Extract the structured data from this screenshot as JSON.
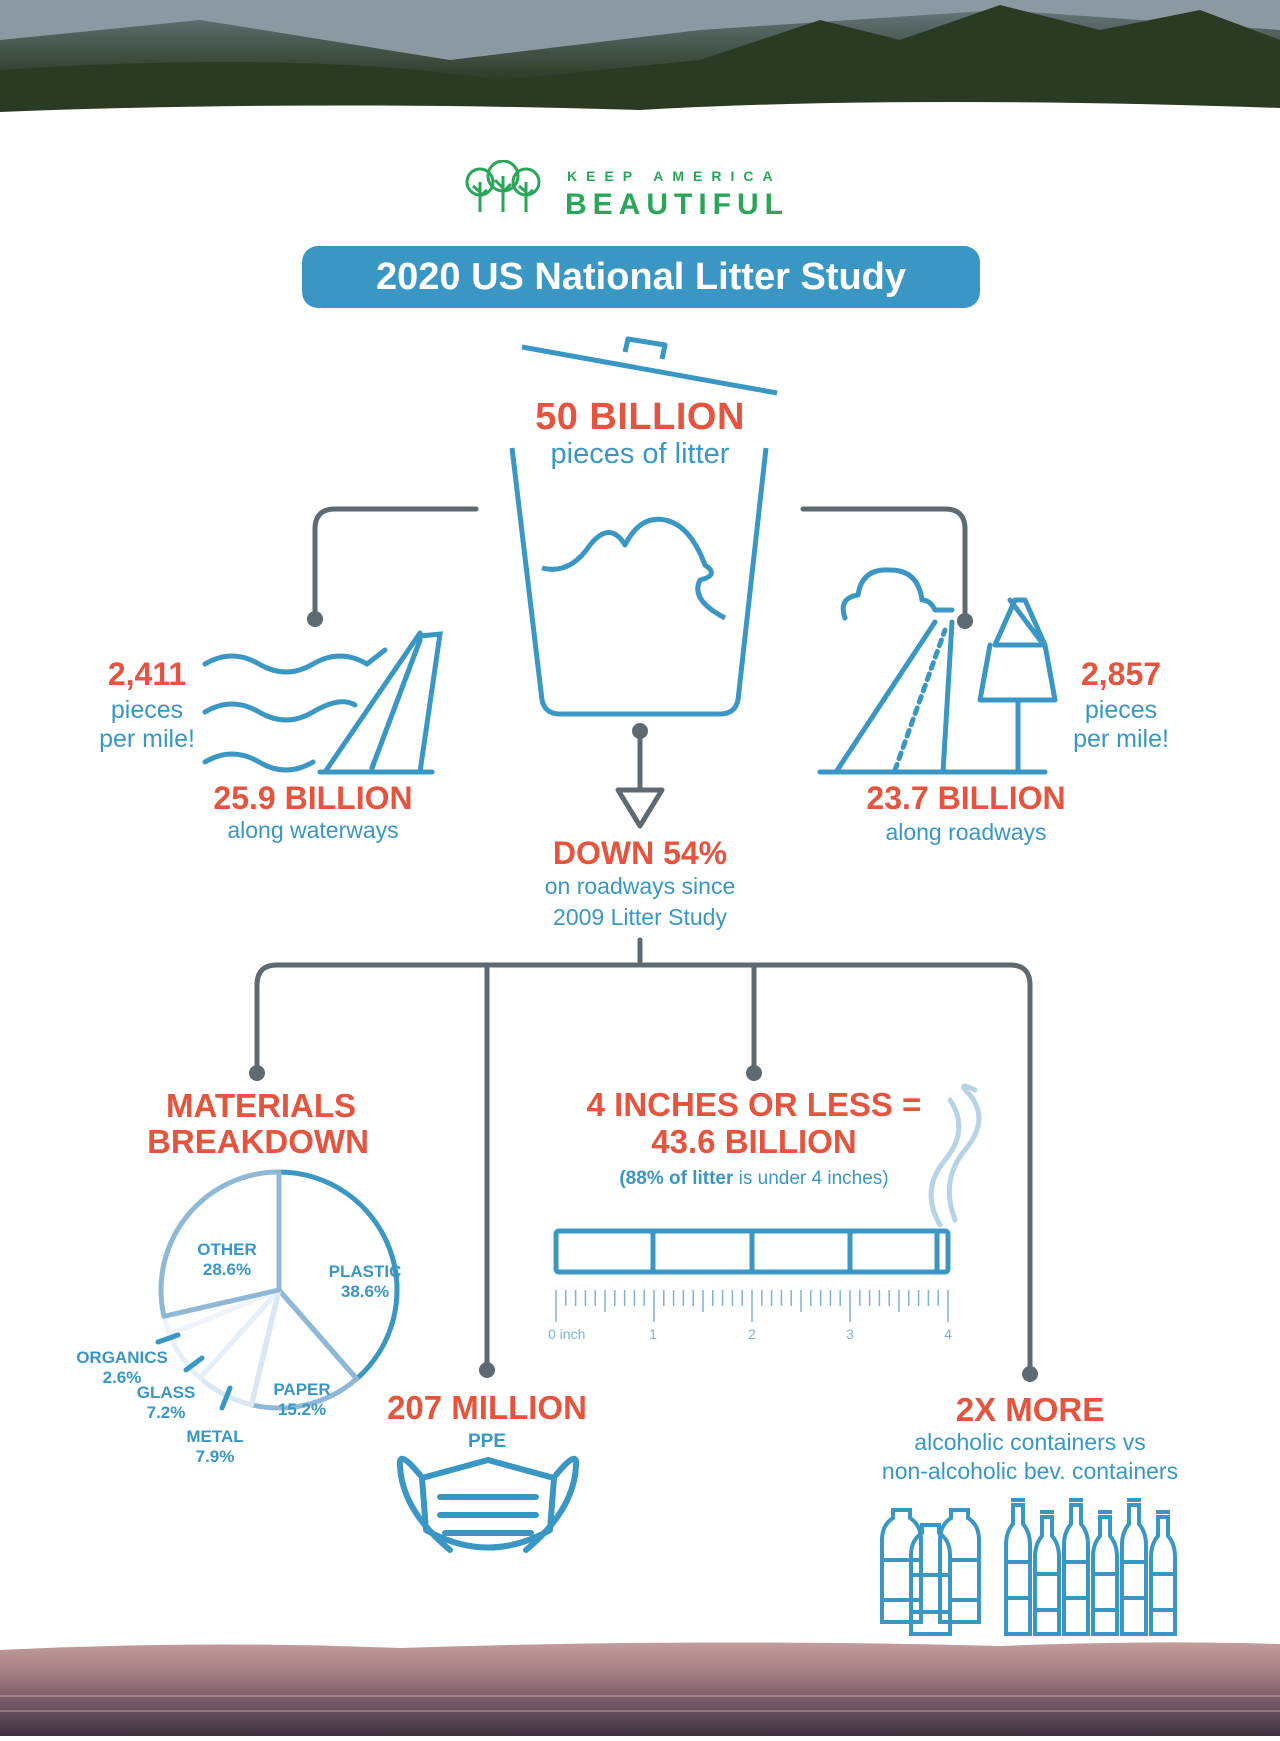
{
  "logo": {
    "line1": "KEEP AMERICA",
    "line2": "BEAUTIFUL",
    "brand_color": "#2aa65a"
  },
  "title": "2020 US National Litter Study",
  "colors": {
    "accent_red": "#e4543f",
    "accent_blue": "#3a97c4",
    "connector_gray": "#5d6a72"
  },
  "total": {
    "value": "50 BILLION",
    "label": "pieces of litter",
    "icon": "trash-can-icon"
  },
  "waterways": {
    "per_mile": "2,411",
    "per_mile_l1": "pieces",
    "per_mile_l2": "per mile!",
    "value": "25.9 BILLION",
    "label": "along waterways",
    "icon": "waves-road-icon"
  },
  "roadways": {
    "per_mile": "2,857",
    "per_mile_l1": "pieces",
    "per_mile_l2": "per mile!",
    "value": "23.7 BILLION",
    "label": "along roadways",
    "icon": "road-tree-cloud-icon"
  },
  "trend": {
    "value": "DOWN 54%",
    "line1": "on roadways since",
    "line2": "2009 Litter Study",
    "icon": "arrow-down-icon"
  },
  "materials": {
    "title1": "MATERIALS",
    "title2": "BREAKDOWN"
  },
  "chart_data": {
    "type": "pie",
    "title": "MATERIALS BREAKDOWN",
    "slices": [
      {
        "label": "PLASTIC",
        "value": 38.6,
        "display": "38.6%"
      },
      {
        "label": "PAPER",
        "value": 15.2,
        "display": "15.2%"
      },
      {
        "label": "METAL",
        "value": 7.9,
        "display": "7.9%"
      },
      {
        "label": "GLASS",
        "value": 7.2,
        "display": "7.2%"
      },
      {
        "label": "ORGANICS",
        "value": 2.6,
        "display": "2.6%"
      },
      {
        "label": "OTHER",
        "value": 28.6,
        "display": "28.6%"
      }
    ]
  },
  "size": {
    "line1": "4 INCHES OR LESS =",
    "line2": "43.6 BILLION",
    "note_bold": "(88% of litter",
    "note_rest": " is under 4 inches)",
    "icon": "cigarette-icon",
    "ruler_labels": [
      "0 inch",
      "1",
      "2",
      "3",
      "4"
    ]
  },
  "ppe": {
    "value": "207 MILLION",
    "label": "PPE",
    "icon": "face-mask-icon"
  },
  "containers": {
    "value": "2X MORE",
    "line1": "alcoholic containers vs",
    "line2": "non-alcoholic bev. containers",
    "icon": "bottles-icon"
  }
}
